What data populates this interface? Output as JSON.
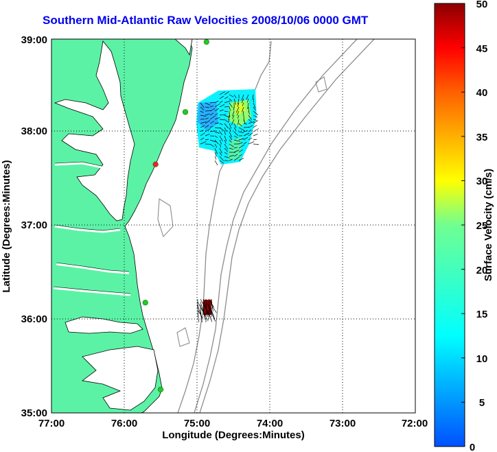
{
  "title": "Southern Mid-Atlantic Raw Velocities 2008/10/06 0000 GMT",
  "x_axis": {
    "label": "Longitude (Degrees:Minutes)",
    "ticks": [
      "77:00",
      "76:00",
      "75:00",
      "74:00",
      "73:00",
      "72:00"
    ]
  },
  "y_axis": {
    "label": "Latitude (Degrees:Minutes)",
    "ticks": [
      "39:00",
      "38:00",
      "37:00",
      "36:00",
      "35:00"
    ]
  },
  "colorbar": {
    "label": "Surface Velocity (cm/s)",
    "ticks": [
      "50",
      "45",
      "40",
      "35",
      "30",
      "25",
      "20",
      "15",
      "10",
      "5",
      "0"
    ],
    "min": 0,
    "max": 50
  },
  "colors": {
    "land": "#5cf2a6",
    "title": "#0000ee",
    "bathymetry": "#8c8c8c",
    "station_marker": "#22cc22",
    "station_marker_active": "#ee2222"
  },
  "stations": [
    {
      "lon": -74.87,
      "lat": 38.97,
      "active": false
    },
    {
      "lon": -75.16,
      "lat": 38.22,
      "active": false
    },
    {
      "lon": -75.57,
      "lat": 37.66,
      "active": true
    },
    {
      "lon": -75.71,
      "lat": 36.18,
      "active": false
    },
    {
      "lon": -75.5,
      "lat": 35.25,
      "active": false
    }
  ]
}
